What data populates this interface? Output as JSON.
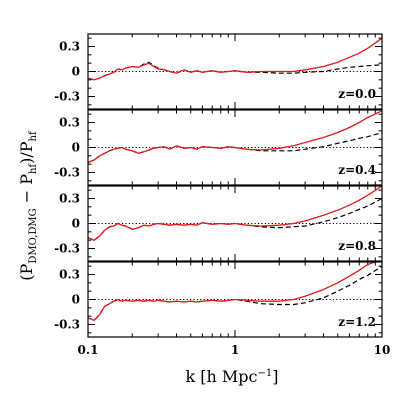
{
  "chart_data": {
    "type": "line",
    "ylabel_main": "(P",
    "ylabel_sub": "DMO,DMG",
    "ylabel_mid": " − P",
    "ylabel_sub2": "hf",
    "ylabel_end": ")/P",
    "ylabel_sub3": "hf",
    "xlabel_main": "k  [h Mpc",
    "xlabel_sup": "−1",
    "xlabel_end": "]",
    "xscale": "log",
    "xlim": [
      0.1,
      10
    ],
    "ylim": [
      -0.45,
      0.45
    ],
    "x_ticks": [
      0.1,
      1,
      10
    ],
    "x_tick_labels": [
      "0.1",
      "1",
      "10"
    ],
    "y_ticks": [
      -0.3,
      0,
      0.3
    ],
    "y_tick_labels": [
      "-0.3",
      "0",
      "0.3"
    ],
    "reference_line_y": 0,
    "line_colors": {
      "solid": "#e41a1c",
      "dashed": "#000000",
      "reference": "#000000"
    },
    "x": [
      0.1,
      0.11,
      0.12,
      0.13,
      0.14,
      0.15,
      0.16,
      0.17,
      0.18,
      0.2,
      0.22,
      0.24,
      0.26,
      0.28,
      0.3,
      0.33,
      0.36,
      0.4,
      0.45,
      0.5,
      0.55,
      0.6,
      0.7,
      0.8,
      0.9,
      1.0,
      1.2,
      1.5,
      2.0,
      2.5,
      3.0,
      4.0,
      5.0,
      6.0,
      7.0,
      8.0,
      10.0
    ],
    "panels": [
      {
        "label": "z=0.0",
        "solid": [
          -0.08,
          -0.1,
          -0.08,
          -0.05,
          -0.03,
          -0.01,
          0.03,
          0.02,
          0.04,
          0.06,
          0.05,
          0.08,
          0.1,
          0.06,
          0.03,
          0.02,
          0.0,
          -0.02,
          0.02,
          -0.01,
          0.01,
          -0.01,
          0.01,
          -0.01,
          0.0,
          0.01,
          -0.01,
          0.0,
          0.0,
          0.0,
          0.02,
          0.06,
          0.11,
          0.17,
          0.22,
          0.28,
          0.4
        ],
        "dashed": [
          -0.08,
          -0.1,
          -0.08,
          -0.05,
          -0.03,
          -0.01,
          0.03,
          0.02,
          0.04,
          0.06,
          0.05,
          0.09,
          0.11,
          0.07,
          0.04,
          0.02,
          0.0,
          -0.02,
          0.02,
          -0.01,
          0.01,
          -0.01,
          0.01,
          -0.01,
          0.0,
          0.01,
          -0.01,
          -0.01,
          -0.02,
          -0.02,
          -0.01,
          0.0,
          0.03,
          0.05,
          0.06,
          0.07,
          0.08
        ]
      },
      {
        "label": "z=0.4",
        "solid": [
          -0.18,
          -0.15,
          -0.1,
          -0.07,
          -0.04,
          -0.02,
          -0.01,
          0.0,
          -0.02,
          -0.04,
          -0.07,
          -0.05,
          -0.03,
          -0.01,
          0.0,
          0.01,
          -0.02,
          0.02,
          -0.01,
          0.0,
          -0.02,
          0.01,
          0.0,
          -0.01,
          0.01,
          0.0,
          -0.02,
          -0.03,
          -0.01,
          0.02,
          0.06,
          0.12,
          0.18,
          0.24,
          0.3,
          0.36,
          0.44
        ],
        "dashed": [
          -0.18,
          -0.15,
          -0.1,
          -0.07,
          -0.04,
          -0.02,
          -0.01,
          0.0,
          -0.02,
          -0.04,
          -0.07,
          -0.05,
          -0.03,
          -0.01,
          0.0,
          0.01,
          -0.02,
          0.02,
          -0.01,
          0.0,
          -0.02,
          0.01,
          0.0,
          -0.01,
          0.01,
          0.0,
          -0.02,
          -0.04,
          -0.04,
          -0.04,
          -0.02,
          0.01,
          0.05,
          0.08,
          0.11,
          0.13,
          0.18
        ]
      },
      {
        "label": "z=0.8",
        "solid": [
          -0.17,
          -0.2,
          -0.15,
          -0.08,
          -0.04,
          -0.03,
          0.0,
          -0.02,
          -0.03,
          -0.07,
          -0.05,
          -0.02,
          -0.03,
          -0.01,
          0.0,
          -0.01,
          -0.02,
          -0.01,
          -0.02,
          -0.01,
          -0.02,
          0.01,
          -0.01,
          0.0,
          -0.01,
          0.0,
          -0.02,
          -0.03,
          -0.02,
          0.0,
          0.03,
          0.1,
          0.16,
          0.22,
          0.28,
          0.34,
          0.45
        ],
        "dashed": [
          -0.17,
          -0.2,
          -0.15,
          -0.08,
          -0.04,
          -0.03,
          0.0,
          -0.02,
          -0.03,
          -0.07,
          -0.05,
          -0.02,
          -0.03,
          -0.01,
          0.0,
          -0.01,
          -0.02,
          -0.01,
          -0.02,
          -0.01,
          -0.02,
          0.01,
          -0.01,
          0.0,
          -0.01,
          0.0,
          -0.02,
          -0.04,
          -0.05,
          -0.04,
          -0.03,
          0.02,
          0.07,
          0.12,
          0.17,
          0.21,
          0.3
        ]
      },
      {
        "label": "z=1.2",
        "solid": [
          -0.22,
          -0.25,
          -0.18,
          -0.08,
          -0.05,
          -0.02,
          0.0,
          -0.02,
          -0.01,
          -0.02,
          -0.01,
          -0.02,
          -0.01,
          -0.02,
          -0.01,
          -0.02,
          -0.03,
          -0.02,
          -0.03,
          -0.02,
          -0.03,
          -0.02,
          -0.01,
          -0.02,
          -0.01,
          0.0,
          -0.01,
          -0.02,
          -0.02,
          0.0,
          0.04,
          0.12,
          0.2,
          0.28,
          0.35,
          0.42,
          0.48
        ],
        "dashed": [
          -0.22,
          -0.25,
          -0.18,
          -0.08,
          -0.05,
          -0.02,
          0.0,
          -0.02,
          -0.01,
          -0.02,
          -0.01,
          -0.02,
          -0.01,
          -0.02,
          -0.01,
          -0.02,
          -0.03,
          -0.02,
          -0.03,
          -0.02,
          -0.03,
          -0.02,
          -0.01,
          -0.02,
          -0.01,
          0.0,
          -0.02,
          -0.05,
          -0.06,
          -0.06,
          -0.04,
          0.02,
          0.1,
          0.17,
          0.24,
          0.29,
          0.4
        ]
      }
    ]
  }
}
